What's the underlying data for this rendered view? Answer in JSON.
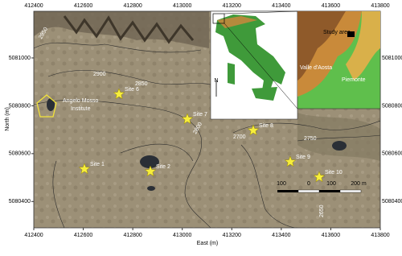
{
  "axes": {
    "x_label": "East (m)",
    "y_label": "North (m)",
    "xticks": [
      412400,
      412600,
      412800,
      413000,
      413200,
      413400,
      413600,
      413800
    ],
    "yticks": [
      5081000,
      5080800,
      5080600,
      5080400
    ],
    "xlim": [
      412400,
      413800
    ],
    "ylim": [
      5080290,
      5081195
    ]
  },
  "sites": [
    "Site 1",
    "Site 2",
    "Site 6",
    "Site 7",
    "Site 8",
    "Site 9",
    "Site 10"
  ],
  "institute": "Angelo Mosso Institute",
  "contours": [
    "2950",
    "2900",
    "2850",
    "2800",
    "2700",
    "2750",
    "2650"
  ],
  "inset": {
    "north": "N",
    "study_area": "Study area",
    "region1": "Valle d'Aosta",
    "region2": "Piemonte"
  },
  "scale_bar": [
    "100",
    "0",
    "100",
    "200 m"
  ]
}
